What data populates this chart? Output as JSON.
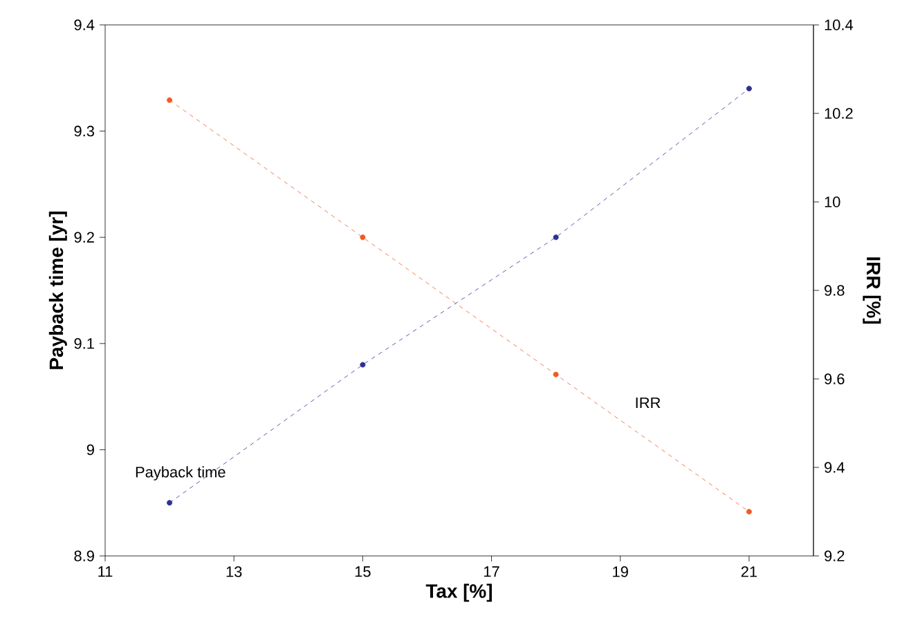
{
  "chart_data": {
    "type": "line",
    "xlabel": "Tax [%]",
    "ylabel": "Payback time [yr]",
    "y2label": "IRR [%]",
    "x": [
      12,
      15,
      18,
      21
    ],
    "series": [
      {
        "name": "Payback time",
        "color": "#2e3192",
        "values": [
          8.95,
          9.08,
          9.2,
          9.34
        ]
      },
      {
        "name": "IRR",
        "color": "#f15a24",
        "axis": "y2",
        "values": [
          10.23,
          9.92,
          9.61,
          9.3
        ]
      }
    ],
    "xlim": [
      11,
      22
    ],
    "xticks": [
      11,
      13,
      15,
      17,
      19,
      21
    ],
    "ylim": [
      8.9,
      9.4
    ],
    "yticks": [
      8.9,
      9,
      9.1,
      9.2,
      9.3,
      9.4
    ],
    "y2lim": [
      9.2,
      10.4
    ],
    "y2ticks": [
      9.2,
      9.4,
      9.6,
      9.8,
      10,
      10.2,
      10.4
    ],
    "marker": "circle",
    "line_style": "dashed"
  }
}
